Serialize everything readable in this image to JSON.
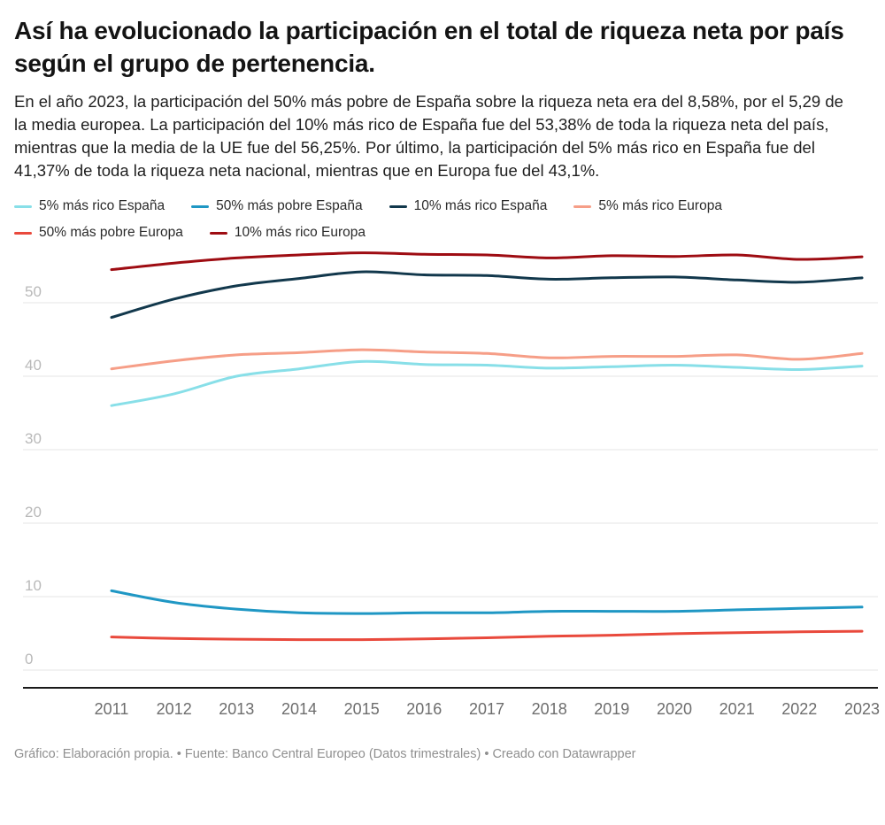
{
  "header": {
    "title": "Así ha evolucionado la participación en el total de riqueza neta por país según el grupo de pertenencia.",
    "description": "En el año 2023, la participación del 50% más pobre de España sobre la riqueza neta era del 8,58%, por el 5,29 de la media europea. La participación del 10% más rico de España fue del 53,38% de toda la riqueza neta del país, mientras que la media de la UE fue del 56,25%. Por último, la participación del 5% más rico en España fue del 41,37% de toda la riqueza neta nacional, mientras que en Europa fue del 43,1%."
  },
  "legend": {
    "items": [
      {
        "label": "5% más rico España",
        "color": "#88dfe8"
      },
      {
        "label": "50% más pobre España",
        "color": "#1f97c4"
      },
      {
        "label": "10% más rico España",
        "color": "#12384c"
      },
      {
        "label": "5% más rico Europa",
        "color": "#f69e87"
      },
      {
        "label": "50% más pobre Europa",
        "color": "#e9493c"
      },
      {
        "label": "10% más rico Europa",
        "color": "#9e0c12"
      }
    ]
  },
  "chart_data": {
    "type": "line",
    "title": "Así ha evolucionado la participación en el total de riqueza neta por país según el grupo de pertenencia.",
    "xlabel": "",
    "ylabel": "",
    "x": [
      2011,
      2012,
      2013,
      2014,
      2015,
      2016,
      2017,
      2018,
      2019,
      2020,
      2021,
      2022,
      2023
    ],
    "series": [
      {
        "name": "5% más rico España",
        "color": "#88dfe8",
        "values": [
          36.0,
          37.6,
          40.0,
          41.0,
          42.0,
          41.6,
          41.5,
          41.1,
          41.3,
          41.5,
          41.2,
          40.9,
          41.37
        ]
      },
      {
        "name": "50% más pobre España",
        "color": "#1f97c4",
        "values": [
          10.8,
          9.2,
          8.3,
          7.8,
          7.7,
          7.8,
          7.8,
          8.0,
          8.0,
          8.0,
          8.2,
          8.4,
          8.58
        ]
      },
      {
        "name": "10% más rico España",
        "color": "#12384c",
        "values": [
          48.0,
          50.5,
          52.3,
          53.3,
          54.2,
          53.8,
          53.7,
          53.2,
          53.4,
          53.5,
          53.1,
          52.8,
          53.38
        ]
      },
      {
        "name": "5% más rico Europa",
        "color": "#f69e87",
        "values": [
          41.0,
          42.1,
          42.9,
          43.2,
          43.6,
          43.3,
          43.1,
          42.5,
          42.7,
          42.7,
          42.9,
          42.3,
          43.1
        ]
      },
      {
        "name": "50% más pobre Europa",
        "color": "#e9493c",
        "values": [
          4.5,
          4.3,
          4.2,
          4.15,
          4.15,
          4.25,
          4.4,
          4.6,
          4.75,
          4.95,
          5.1,
          5.2,
          5.29
        ]
      },
      {
        "name": "10% más rico Europa",
        "color": "#9e0c12",
        "values": [
          54.5,
          55.4,
          56.1,
          56.5,
          56.8,
          56.6,
          56.5,
          56.1,
          56.4,
          56.3,
          56.5,
          55.9,
          56.25
        ]
      }
    ],
    "yticks": [
      0,
      10,
      20,
      30,
      40,
      50
    ],
    "ylim": [
      0,
      58
    ],
    "grid": true,
    "legend_position": "top"
  },
  "footer": {
    "text": "Gráfico: Elaboración propia. • Fuente: Banco Central Europeo (Datos trimestrales) • Creado con Datawrapper"
  }
}
